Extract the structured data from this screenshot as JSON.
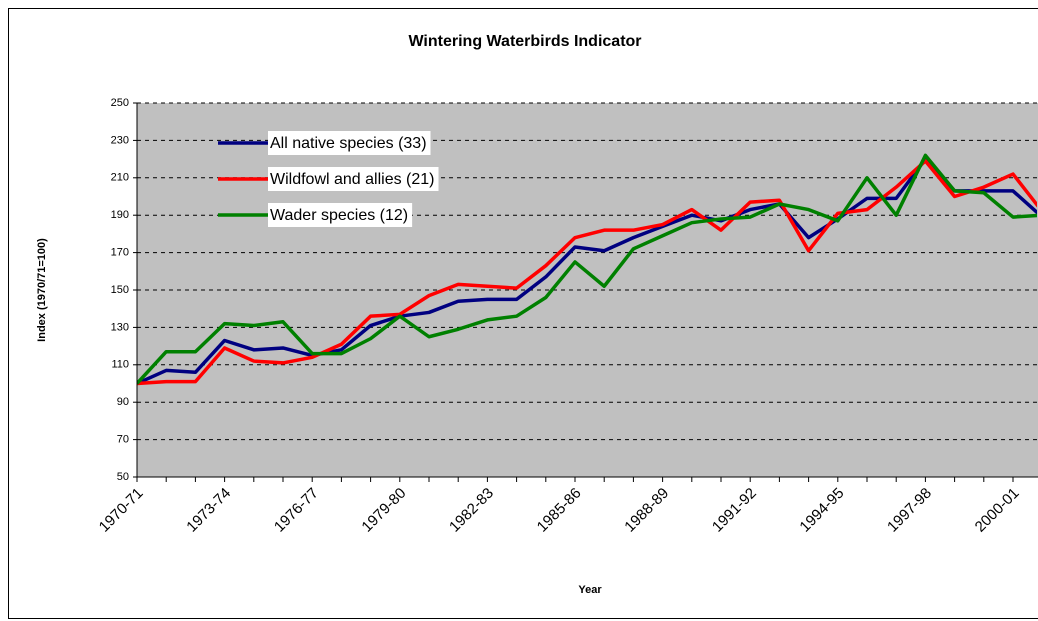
{
  "chart_data": {
    "type": "line",
    "title": "Wintering Waterbirds Indicator",
    "x_label": "Year",
    "y_label": "Index (1970/71=100)",
    "categories": [
      "1970-71",
      null,
      null,
      "1973-74",
      null,
      null,
      "1976-77",
      null,
      null,
      "1979-80",
      null,
      null,
      "1982-83",
      null,
      null,
      "1985-86",
      null,
      null,
      "1988-89",
      null,
      null,
      "1991-92",
      null,
      null,
      "1994-95",
      null,
      null,
      "1997-98",
      null,
      null,
      "2000-01",
      null
    ],
    "series": [
      {
        "name": "All native species (33)",
        "color": "#000080",
        "values": [
          100,
          107,
          106,
          123,
          118,
          119,
          115,
          118,
          131,
          136,
          138,
          144,
          145,
          145,
          157,
          173,
          171,
          178,
          184,
          190,
          187,
          193,
          196,
          178,
          188,
          199,
          199,
          220,
          203,
          203,
          203,
          189
        ]
      },
      {
        "name": "Wildfowl and allies (21)",
        "color": "#ff0000",
        "values": [
          100,
          101,
          101,
          119,
          112,
          111,
          114,
          121,
          136,
          137,
          147,
          153,
          152,
          151,
          163,
          178,
          182,
          182,
          185,
          193,
          182,
          197,
          198,
          171,
          191,
          193,
          205,
          219,
          200,
          205,
          212,
          192
        ]
      },
      {
        "name": "Wader species (12)",
        "color": "#008000",
        "values": [
          100,
          117,
          117,
          132,
          131,
          133,
          116,
          116,
          124,
          136,
          125,
          129,
          134,
          136,
          146,
          165,
          152,
          172,
          179,
          186,
          188,
          189,
          196,
          193,
          187,
          210,
          190,
          222,
          203,
          202,
          189,
          190
        ]
      }
    ],
    "ylim": [
      50,
      250
    ],
    "yticks": [
      50,
      70,
      90,
      110,
      130,
      150,
      170,
      190,
      210,
      230,
      250
    ],
    "grid": true,
    "legend": "upper left"
  }
}
